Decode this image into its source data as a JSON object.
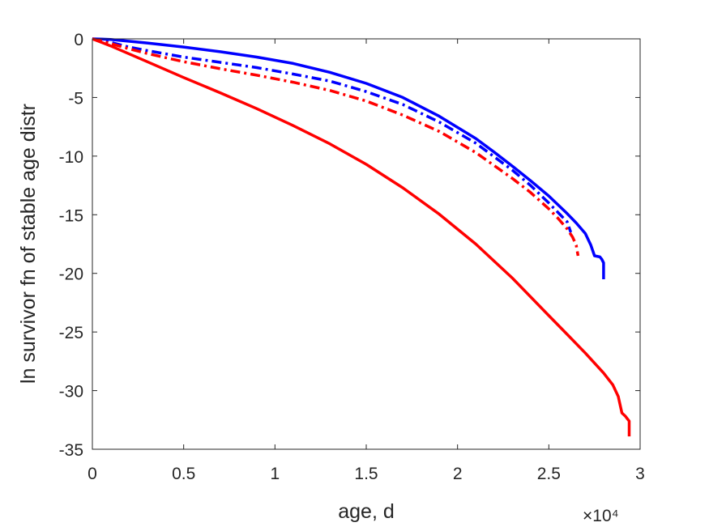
{
  "chart_data": {
    "type": "line",
    "xlabel": "age, d",
    "ylabel": "ln survivor fn of stable age distr",
    "x_exponent_label": "×10⁴",
    "xlim": [
      0,
      30000
    ],
    "ylim": [
      -35,
      0
    ],
    "xticks": [
      0,
      5000,
      10000,
      15000,
      20000,
      25000,
      30000
    ],
    "xtick_labels": [
      "0",
      "0.5",
      "1",
      "1.5",
      "2",
      "2.5",
      "3"
    ],
    "yticks": [
      0,
      -5,
      -10,
      -15,
      -20,
      -25,
      -30,
      -35
    ],
    "ytick_labels": [
      "0",
      "-5",
      "-10",
      "-15",
      "-20",
      "-25",
      "-30",
      "-35"
    ],
    "grid": false,
    "box": true,
    "series": [
      {
        "color": "#0000ff",
        "style": "solid",
        "x": [
          0,
          1000,
          3000,
          5000,
          7000,
          9000,
          11000,
          13000,
          15000,
          17000,
          19000,
          21000,
          22000,
          23000,
          24000,
          25000,
          26000,
          26500,
          27000,
          27300,
          27500,
          27800,
          27900,
          28000,
          28000
        ],
        "y": [
          0,
          -0.05,
          -0.35,
          -0.7,
          -1.1,
          -1.55,
          -2.1,
          -2.85,
          -3.8,
          -5.0,
          -6.6,
          -8.5,
          -9.65,
          -10.85,
          -12.1,
          -13.4,
          -14.9,
          -15.7,
          -16.6,
          -17.6,
          -18.5,
          -18.6,
          -18.8,
          -19.1,
          -20.5
        ]
      },
      {
        "color": "#0000ff",
        "style": "dashdot",
        "x": [
          0,
          1000,
          2000,
          3000,
          5000,
          7000,
          9000,
          11000,
          13000,
          15000,
          17000,
          19000,
          21000,
          23000,
          24000,
          25000,
          25500,
          26000,
          26200
        ],
        "y": [
          0,
          -0.3,
          -0.7,
          -1.0,
          -1.55,
          -2.0,
          -2.45,
          -3.0,
          -3.6,
          -4.5,
          -5.6,
          -7.1,
          -8.9,
          -11.2,
          -12.5,
          -14.0,
          -14.8,
          -15.6,
          -16.5
        ]
      },
      {
        "color": "#ff0000",
        "style": "dashdot",
        "x": [
          0,
          1000,
          2000,
          3000,
          5000,
          7000,
          9000,
          11000,
          13000,
          15000,
          17000,
          19000,
          21000,
          23000,
          24000,
          25000,
          25500,
          26000,
          26300,
          26500,
          26600
        ],
        "y": [
          0,
          -0.4,
          -0.85,
          -1.25,
          -1.95,
          -2.55,
          -3.1,
          -3.7,
          -4.4,
          -5.3,
          -6.5,
          -7.9,
          -9.7,
          -11.9,
          -13.1,
          -14.5,
          -15.3,
          -16.2,
          -16.9,
          -17.6,
          -18.5
        ]
      },
      {
        "color": "#ff0000",
        "style": "solid",
        "x": [
          0,
          1000,
          3000,
          5000,
          7000,
          9000,
          11000,
          13000,
          15000,
          17000,
          19000,
          21000,
          23000,
          25000,
          26000,
          27000,
          28000,
          28500,
          28800,
          29000,
          29200,
          29300,
          29400,
          29400
        ],
        "y": [
          0,
          -0.6,
          -1.95,
          -3.3,
          -4.6,
          -5.95,
          -7.4,
          -8.95,
          -10.7,
          -12.7,
          -14.95,
          -17.5,
          -20.4,
          -23.6,
          -25.2,
          -26.8,
          -28.5,
          -29.5,
          -30.5,
          -31.9,
          -32.2,
          -32.4,
          -32.6,
          -33.9
        ]
      }
    ]
  }
}
